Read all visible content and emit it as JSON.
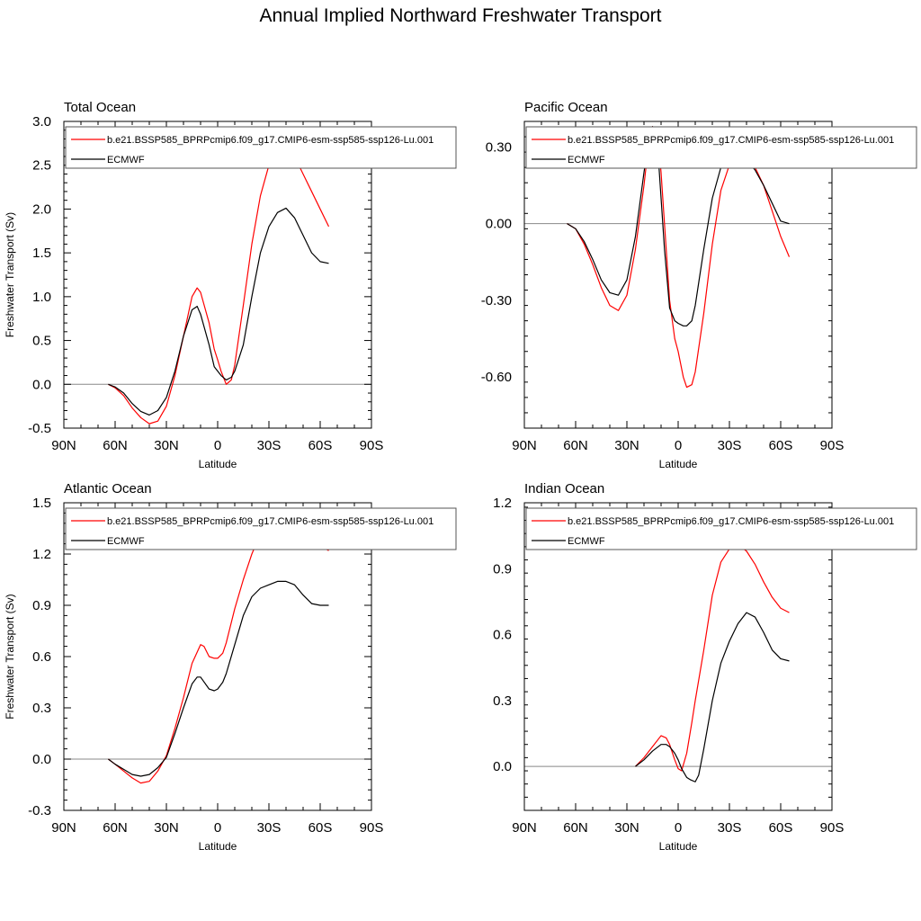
{
  "title": "Annual Implied Northward Freshwater Transport",
  "colors": {
    "model": "#ff0000",
    "obs": "#000000",
    "axis": "#000000",
    "zero_line": "#888888"
  },
  "chart_data": [
    {
      "type": "line",
      "panel_title": "Total Ocean",
      "xlabel": "Latitude",
      "ylabel": "Freshwater Transport (Sv)",
      "xlim": [
        90,
        -90
      ],
      "x_tick_values": [
        90,
        60,
        30,
        0,
        -30,
        -60,
        -90
      ],
      "x_tick_labels": [
        "90N",
        "60N",
        "30N",
        "0",
        "30S",
        "60S",
        "90S"
      ],
      "ylim": [
        -0.5,
        3.0
      ],
      "y_tick_values": [
        -0.5,
        0.0,
        0.5,
        1.0,
        1.5,
        2.0,
        2.5,
        3.0
      ],
      "y_tick_labels": [
        "-0.5",
        "0.0",
        "0.5",
        "1.0",
        "1.5",
        "2.0",
        "2.5",
        "3.0"
      ],
      "zero_line": true,
      "legend_position": "top",
      "series": [
        {
          "name": "b.e21.BSSP585_BPRPcmip6.f09_g17.CMIP6-esm-ssp585-ssp126-Lu.001",
          "color": "#ff0000",
          "x": [
            64,
            60,
            55,
            50,
            45,
            40,
            35,
            30,
            25,
            20,
            15,
            12,
            10,
            5,
            2,
            0,
            -2,
            -5,
            -8,
            -10,
            -15,
            -20,
            -25,
            -30,
            -35,
            -40,
            -45,
            -50,
            -55,
            -60,
            -65
          ],
          "y": [
            0.0,
            -0.04,
            -0.13,
            -0.27,
            -0.38,
            -0.45,
            -0.42,
            -0.25,
            0.1,
            0.55,
            1.0,
            1.1,
            1.05,
            0.7,
            0.4,
            0.28,
            0.15,
            0.0,
            0.05,
            0.22,
            0.9,
            1.6,
            2.15,
            2.5,
            2.68,
            2.7,
            2.6,
            2.4,
            2.2,
            2.0,
            1.8
          ]
        },
        {
          "name": "ECMWF",
          "color": "#000000",
          "x": [
            64,
            60,
            55,
            50,
            45,
            40,
            35,
            30,
            25,
            20,
            15,
            12,
            10,
            5,
            2,
            0,
            -2,
            -5,
            -8,
            -10,
            -15,
            -20,
            -25,
            -30,
            -35,
            -40,
            -45,
            -50,
            -55,
            -60,
            -65
          ],
          "y": [
            0.0,
            -0.03,
            -0.1,
            -0.22,
            -0.31,
            -0.35,
            -0.3,
            -0.15,
            0.15,
            0.55,
            0.85,
            0.89,
            0.8,
            0.45,
            0.2,
            0.15,
            0.1,
            0.05,
            0.08,
            0.15,
            0.45,
            1.0,
            1.5,
            1.8,
            1.96,
            2.01,
            1.9,
            1.7,
            1.5,
            1.4,
            1.38
          ]
        }
      ]
    },
    {
      "type": "line",
      "panel_title": "Pacific Ocean",
      "xlabel": "Latitude",
      "ylabel": "",
      "xlim": [
        90,
        -90
      ],
      "x_tick_values": [
        90,
        60,
        30,
        0,
        -30,
        -60,
        -90
      ],
      "x_tick_labels": [
        "90N",
        "60N",
        "30N",
        "0",
        "30S",
        "60S",
        "90S"
      ],
      "ylim": [
        -0.8,
        0.4
      ],
      "y_tick_values": [
        -0.6,
        -0.3,
        0.0,
        0.3
      ],
      "y_tick_labels": [
        "-0.60",
        "-0.30",
        "0.00",
        "0.30"
      ],
      "zero_line": true,
      "legend_position": "top",
      "series": [
        {
          "name": "b.e21.BSSP585_BPRPcmip6.f09_g17.CMIP6-esm-ssp585-ssp126-Lu.001",
          "color": "#ff0000",
          "x": [
            65,
            60,
            55,
            50,
            45,
            40,
            35,
            30,
            25,
            20,
            17,
            15,
            12,
            10,
            8,
            5,
            2,
            0,
            -3,
            -5,
            -8,
            -10,
            -15,
            -20,
            -25,
            -30,
            -35,
            -40,
            -45,
            -50,
            -55,
            -60,
            -65
          ],
          "y": [
            0.0,
            -0.02,
            -0.08,
            -0.16,
            -0.25,
            -0.32,
            -0.34,
            -0.28,
            -0.1,
            0.15,
            0.33,
            0.38,
            0.35,
            0.2,
            0.0,
            -0.3,
            -0.45,
            -0.5,
            -0.6,
            -0.64,
            -0.63,
            -0.58,
            -0.35,
            -0.08,
            0.13,
            0.23,
            0.26,
            0.26,
            0.22,
            0.15,
            0.05,
            -0.05,
            -0.13
          ]
        },
        {
          "name": "ECMWF",
          "color": "#000000",
          "x": [
            65,
            60,
            55,
            50,
            45,
            40,
            35,
            30,
            25,
            20,
            17,
            15,
            12,
            10,
            8,
            5,
            2,
            0,
            -3,
            -5,
            -8,
            -10,
            -15,
            -20,
            -25,
            -30,
            -35,
            -40,
            -45,
            -50,
            -55,
            -60,
            -65
          ],
          "y": [
            0.0,
            -0.02,
            -0.07,
            -0.14,
            -0.22,
            -0.27,
            -0.28,
            -0.22,
            -0.05,
            0.2,
            0.34,
            0.38,
            0.3,
            0.1,
            -0.1,
            -0.33,
            -0.38,
            -0.39,
            -0.4,
            -0.4,
            -0.38,
            -0.32,
            -0.1,
            0.1,
            0.22,
            0.26,
            0.27,
            0.25,
            0.21,
            0.15,
            0.08,
            0.01,
            0.0
          ]
        }
      ]
    },
    {
      "type": "line",
      "panel_title": "Atlantic Ocean",
      "xlabel": "Latitude",
      "ylabel": "Freshwater Transport (Sv)",
      "xlim": [
        90,
        -90
      ],
      "x_tick_values": [
        90,
        60,
        30,
        0,
        -30,
        -60,
        -90
      ],
      "x_tick_labels": [
        "90N",
        "60N",
        "30N",
        "0",
        "30S",
        "60S",
        "90S"
      ],
      "ylim": [
        -0.3,
        1.5
      ],
      "y_tick_values": [
        -0.3,
        0.0,
        0.3,
        0.6,
        0.9,
        1.2,
        1.5
      ],
      "y_tick_labels": [
        "-0.3",
        "0.0",
        "0.3",
        "0.6",
        "0.9",
        "1.2",
        "1.5"
      ],
      "zero_line": true,
      "legend_position": "top",
      "series": [
        {
          "name": "b.e21.BSSP585_BPRPcmip6.f09_g17.CMIP6-esm-ssp585-ssp126-Lu.001",
          "color": "#ff0000",
          "x": [
            64,
            60,
            55,
            50,
            45,
            40,
            35,
            30,
            25,
            20,
            15,
            10,
            8,
            5,
            2,
            0,
            -3,
            -5,
            -10,
            -15,
            -20,
            -25,
            -30,
            -35,
            -40,
            -43,
            -45,
            -50,
            -55,
            -60,
            -65
          ],
          "y": [
            0.0,
            -0.03,
            -0.07,
            -0.11,
            -0.14,
            -0.13,
            -0.07,
            0.02,
            0.18,
            0.36,
            0.56,
            0.67,
            0.66,
            0.6,
            0.59,
            0.59,
            0.62,
            0.68,
            0.88,
            1.05,
            1.2,
            1.32,
            1.39,
            1.43,
            1.44,
            1.44,
            1.42,
            1.36,
            1.3,
            1.25,
            1.22
          ]
        },
        {
          "name": "ECMWF",
          "color": "#000000",
          "x": [
            64,
            60,
            55,
            50,
            45,
            40,
            35,
            30,
            25,
            20,
            15,
            12,
            10,
            5,
            2,
            0,
            -3,
            -5,
            -10,
            -15,
            -20,
            -25,
            -30,
            -35,
            -40,
            -45,
            -50,
            -55,
            -60,
            -65
          ],
          "y": [
            0.0,
            -0.03,
            -0.06,
            -0.09,
            -0.1,
            -0.09,
            -0.05,
            0.01,
            0.15,
            0.3,
            0.44,
            0.48,
            0.48,
            0.41,
            0.4,
            0.41,
            0.45,
            0.5,
            0.67,
            0.84,
            0.95,
            1.0,
            1.02,
            1.04,
            1.04,
            1.02,
            0.96,
            0.91,
            0.9,
            0.9
          ]
        }
      ]
    },
    {
      "type": "line",
      "panel_title": "Indian Ocean",
      "xlabel": "Latitude",
      "ylabel": "",
      "xlim": [
        90,
        -90
      ],
      "x_tick_values": [
        90,
        60,
        30,
        0,
        -30,
        -60,
        -90
      ],
      "x_tick_labels": [
        "90N",
        "60N",
        "30N",
        "0",
        "30S",
        "60S",
        "90S"
      ],
      "ylim": [
        -0.2,
        1.2
      ],
      "y_tick_values": [
        0.0,
        0.3,
        0.6,
        0.9,
        1.2
      ],
      "y_tick_labels": [
        "0.0",
        "0.3",
        "0.6",
        "0.9",
        "1.2"
      ],
      "zero_line": true,
      "legend_position": "top",
      "series": [
        {
          "name": "b.e21.BSSP585_BPRPcmip6.f09_g17.CMIP6-esm-ssp585-ssp126-Lu.001",
          "color": "#ff0000",
          "x": [
            25,
            20,
            15,
            10,
            7,
            5,
            2,
            0,
            -2,
            -5,
            -8,
            -10,
            -15,
            -20,
            -25,
            -30,
            -35,
            -40,
            -45,
            -50,
            -55,
            -60,
            -65
          ],
          "y": [
            0.0,
            0.04,
            0.09,
            0.14,
            0.13,
            0.1,
            0.03,
            -0.01,
            -0.02,
            0.06,
            0.2,
            0.3,
            0.53,
            0.78,
            0.93,
            0.99,
            1.01,
            0.98,
            0.92,
            0.84,
            0.77,
            0.72,
            0.7
          ]
        },
        {
          "name": "ECMWF",
          "color": "#000000",
          "x": [
            25,
            20,
            15,
            10,
            7,
            5,
            2,
            0,
            -2,
            -5,
            -7,
            -10,
            -12,
            -15,
            -20,
            -25,
            -30,
            -35,
            -40,
            -45,
            -50,
            -55,
            -60,
            -65
          ],
          "y": [
            0.0,
            0.03,
            0.07,
            0.1,
            0.1,
            0.09,
            0.06,
            0.03,
            -0.01,
            -0.05,
            -0.06,
            -0.07,
            -0.04,
            0.08,
            0.3,
            0.47,
            0.57,
            0.65,
            0.7,
            0.68,
            0.61,
            0.53,
            0.49,
            0.48
          ]
        }
      ]
    }
  ]
}
